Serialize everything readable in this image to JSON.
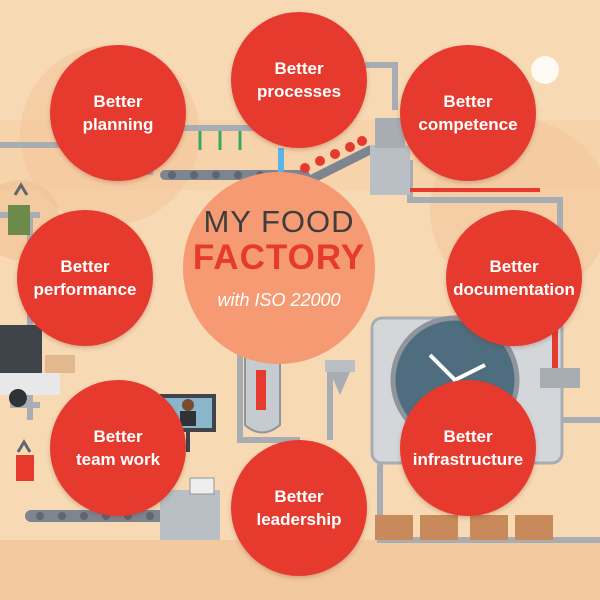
{
  "center": {
    "line1": "MY FOOD",
    "line2": "FACTORY",
    "line3": "with ISO 22000"
  },
  "bubbles": {
    "planning": {
      "line1": "Better",
      "line2": "planning"
    },
    "processes": {
      "line1": "Better",
      "line2": "processes"
    },
    "competence": {
      "line1": "Better",
      "line2": "competence"
    },
    "performance": {
      "line1": "Better",
      "line2": "performance"
    },
    "documentation": {
      "line1": "Better",
      "line2": "documentation"
    },
    "team_work": {
      "line1": "Better",
      "line2": "team work"
    },
    "leadership": {
      "line1": "Better",
      "line2": "leadership"
    },
    "infrastructure": {
      "line1": "Better",
      "line2": "infrastructure"
    }
  },
  "colors": {
    "background": "#f7d9b4",
    "bubble": "#e63a2e",
    "center_circle": "#f59a72",
    "machinery": "#a7adb3"
  }
}
